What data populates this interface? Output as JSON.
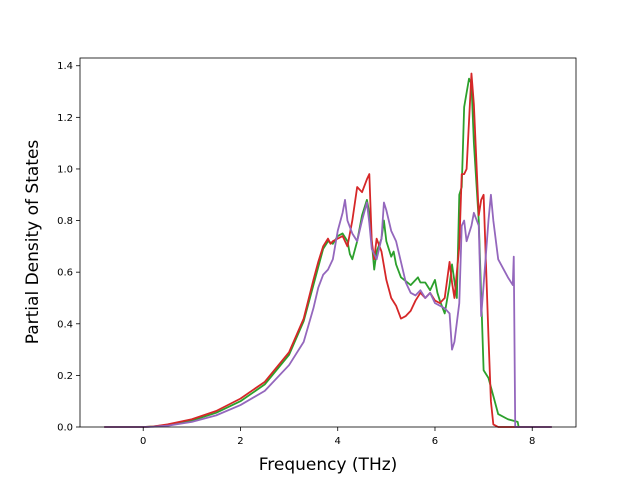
{
  "chart_data": {
    "type": "line",
    "title": "",
    "xlabel": "Frequency (THz)",
    "ylabel": "Partial Density of States",
    "xlim": [
      -1.3,
      8.9
    ],
    "ylim": [
      0.0,
      1.43
    ],
    "xticks": [
      0,
      2,
      4,
      6,
      8
    ],
    "yticks": [
      0.0,
      0.2,
      0.4,
      0.6,
      0.8,
      1.0,
      1.2,
      1.4
    ],
    "xtick_labels": [
      "0",
      "2",
      "4",
      "6",
      "8"
    ],
    "ytick_labels": [
      "0.0",
      "0.2",
      "0.4",
      "0.6",
      "0.8",
      "1.0",
      "1.2",
      "1.4"
    ],
    "grid": false,
    "legend": "none",
    "series": [
      {
        "color": "#2ca02c",
        "points": [
          [
            -0.8,
            0
          ],
          [
            0,
            0
          ],
          [
            0.2,
            0.002
          ],
          [
            0.5,
            0.008
          ],
          [
            1.0,
            0.025
          ],
          [
            1.5,
            0.055
          ],
          [
            2.0,
            0.1
          ],
          [
            2.5,
            0.165
          ],
          [
            3.0,
            0.28
          ],
          [
            3.3,
            0.41
          ],
          [
            3.5,
            0.55
          ],
          [
            3.6,
            0.62
          ],
          [
            3.7,
            0.69
          ],
          [
            3.8,
            0.72
          ],
          [
            3.9,
            0.71
          ],
          [
            4.0,
            0.74
          ],
          [
            4.1,
            0.75
          ],
          [
            4.2,
            0.72
          ],
          [
            4.25,
            0.67
          ],
          [
            4.3,
            0.65
          ],
          [
            4.4,
            0.72
          ],
          [
            4.5,
            0.82
          ],
          [
            4.6,
            0.88
          ],
          [
            4.65,
            0.83
          ],
          [
            4.7,
            0.72
          ],
          [
            4.75,
            0.61
          ],
          [
            4.8,
            0.68
          ],
          [
            4.9,
            0.73
          ],
          [
            4.95,
            0.8
          ],
          [
            5.0,
            0.72
          ],
          [
            5.1,
            0.66
          ],
          [
            5.15,
            0.68
          ],
          [
            5.2,
            0.63
          ],
          [
            5.3,
            0.58
          ],
          [
            5.5,
            0.55
          ],
          [
            5.65,
            0.58
          ],
          [
            5.7,
            0.56
          ],
          [
            5.8,
            0.56
          ],
          [
            5.9,
            0.53
          ],
          [
            6.0,
            0.57
          ],
          [
            6.05,
            0.52
          ],
          [
            6.1,
            0.49
          ],
          [
            6.2,
            0.44
          ],
          [
            6.3,
            0.55
          ],
          [
            6.35,
            0.63
          ],
          [
            6.45,
            0.5
          ],
          [
            6.5,
            0.9
          ],
          [
            6.55,
            0.93
          ],
          [
            6.6,
            1.24
          ],
          [
            6.7,
            1.35
          ],
          [
            6.75,
            1.33
          ],
          [
            6.8,
            1.1
          ],
          [
            6.9,
            0.8
          ],
          [
            7.0,
            0.22
          ],
          [
            7.1,
            0.19
          ],
          [
            7.2,
            0.12
          ],
          [
            7.3,
            0.05
          ],
          [
            7.5,
            0.03
          ],
          [
            7.7,
            0.02
          ],
          [
            7.72,
            0
          ],
          [
            8.4,
            0
          ]
        ]
      },
      {
        "color": "#d62728",
        "points": [
          [
            -0.8,
            0
          ],
          [
            0,
            0
          ],
          [
            0.2,
            0.002
          ],
          [
            0.5,
            0.01
          ],
          [
            1.0,
            0.03
          ],
          [
            1.5,
            0.062
          ],
          [
            2.0,
            0.11
          ],
          [
            2.5,
            0.175
          ],
          [
            3.0,
            0.29
          ],
          [
            3.3,
            0.42
          ],
          [
            3.5,
            0.57
          ],
          [
            3.6,
            0.64
          ],
          [
            3.7,
            0.7
          ],
          [
            3.8,
            0.73
          ],
          [
            3.85,
            0.71
          ],
          [
            3.9,
            0.72
          ],
          [
            4.0,
            0.73
          ],
          [
            4.1,
            0.74
          ],
          [
            4.2,
            0.7
          ],
          [
            4.3,
            0.8
          ],
          [
            4.4,
            0.93
          ],
          [
            4.5,
            0.91
          ],
          [
            4.6,
            0.96
          ],
          [
            4.65,
            0.98
          ],
          [
            4.7,
            0.72
          ],
          [
            4.75,
            0.65
          ],
          [
            4.8,
            0.73
          ],
          [
            4.9,
            0.68
          ],
          [
            5.0,
            0.57
          ],
          [
            5.1,
            0.5
          ],
          [
            5.2,
            0.47
          ],
          [
            5.3,
            0.42
          ],
          [
            5.4,
            0.43
          ],
          [
            5.5,
            0.45
          ],
          [
            5.6,
            0.49
          ],
          [
            5.7,
            0.52
          ],
          [
            5.8,
            0.5
          ],
          [
            5.9,
            0.52
          ],
          [
            6.0,
            0.49
          ],
          [
            6.1,
            0.48
          ],
          [
            6.2,
            0.5
          ],
          [
            6.3,
            0.64
          ],
          [
            6.35,
            0.56
          ],
          [
            6.4,
            0.5
          ],
          [
            6.5,
            0.7
          ],
          [
            6.55,
            0.98
          ],
          [
            6.6,
            0.98
          ],
          [
            6.65,
            1.0
          ],
          [
            6.75,
            1.37
          ],
          [
            6.8,
            1.25
          ],
          [
            6.9,
            0.82
          ],
          [
            6.95,
            0.88
          ],
          [
            7.0,
            0.9
          ],
          [
            7.1,
            0.35
          ],
          [
            7.15,
            0.1
          ],
          [
            7.2,
            0.01
          ],
          [
            7.3,
            0
          ],
          [
            8.4,
            0
          ]
        ]
      },
      {
        "color": "#9467bd",
        "points": [
          [
            -0.8,
            0
          ],
          [
            0,
            0
          ],
          [
            0.2,
            0.001
          ],
          [
            0.5,
            0.005
          ],
          [
            1.0,
            0.02
          ],
          [
            1.5,
            0.045
          ],
          [
            2.0,
            0.085
          ],
          [
            2.5,
            0.14
          ],
          [
            3.0,
            0.24
          ],
          [
            3.3,
            0.33
          ],
          [
            3.5,
            0.46
          ],
          [
            3.6,
            0.54
          ],
          [
            3.7,
            0.59
          ],
          [
            3.8,
            0.61
          ],
          [
            3.9,
            0.65
          ],
          [
            4.0,
            0.76
          ],
          [
            4.1,
            0.83
          ],
          [
            4.15,
            0.88
          ],
          [
            4.2,
            0.8
          ],
          [
            4.3,
            0.75
          ],
          [
            4.4,
            0.72
          ],
          [
            4.5,
            0.8
          ],
          [
            4.6,
            0.87
          ],
          [
            4.65,
            0.79
          ],
          [
            4.7,
            0.69
          ],
          [
            4.8,
            0.65
          ],
          [
            4.9,
            0.73
          ],
          [
            4.95,
            0.87
          ],
          [
            5.0,
            0.84
          ],
          [
            5.1,
            0.76
          ],
          [
            5.2,
            0.72
          ],
          [
            5.3,
            0.64
          ],
          [
            5.4,
            0.56
          ],
          [
            5.5,
            0.52
          ],
          [
            5.6,
            0.51
          ],
          [
            5.7,
            0.53
          ],
          [
            5.8,
            0.5
          ],
          [
            5.9,
            0.52
          ],
          [
            6.0,
            0.48
          ],
          [
            6.1,
            0.47
          ],
          [
            6.2,
            0.46
          ],
          [
            6.3,
            0.44
          ],
          [
            6.35,
            0.3
          ],
          [
            6.4,
            0.33
          ],
          [
            6.5,
            0.48
          ],
          [
            6.55,
            0.78
          ],
          [
            6.6,
            0.8
          ],
          [
            6.65,
            0.72
          ],
          [
            6.75,
            0.78
          ],
          [
            6.8,
            0.83
          ],
          [
            6.9,
            0.78
          ],
          [
            6.95,
            0.43
          ],
          [
            7.0,
            0.55
          ],
          [
            7.1,
            0.8
          ],
          [
            7.15,
            0.9
          ],
          [
            7.2,
            0.8
          ],
          [
            7.3,
            0.65
          ],
          [
            7.5,
            0.58
          ],
          [
            7.6,
            0.55
          ],
          [
            7.62,
            0.66
          ],
          [
            7.65,
            0
          ],
          [
            8.4,
            0
          ]
        ]
      }
    ]
  }
}
